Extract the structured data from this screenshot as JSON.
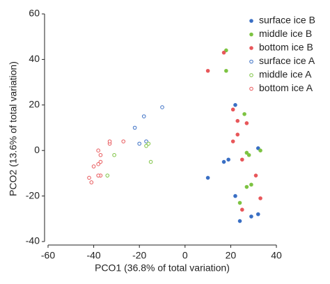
{
  "chart_data": {
    "type": "scatter",
    "x_label": "PCO1 (36.8% of total variation)",
    "y_label": "PCO2 (13.6% of total variation)",
    "xlim": [
      -60,
      40
    ],
    "xticks": [
      -60,
      -40,
      -20,
      0,
      20,
      40
    ],
    "ylim": [
      -40,
      60
    ],
    "yticks": [
      -40,
      -20,
      0,
      20,
      40,
      60
    ],
    "legend": "upper right",
    "series": [
      {
        "name": "surface ice B",
        "color": "#3a6fc4",
        "marker": "filled",
        "x": [
          22,
          32,
          19,
          17,
          10,
          22,
          32,
          29,
          24
        ],
        "y": [
          20,
          1,
          -4,
          -5,
          -12,
          -20,
          -28,
          -29,
          -31
        ]
      },
      {
        "name": "middle ice B",
        "color": "#7dc342",
        "marker": "filled",
        "x": [
          18,
          18,
          26,
          27,
          28,
          33,
          29,
          27,
          24
        ],
        "y": [
          44,
          35,
          16,
          -1,
          -2,
          0,
          -15,
          -16,
          -23
        ]
      },
      {
        "name": "bottom ice B",
        "color": "#e8575a",
        "marker": "filled",
        "x": [
          17,
          10,
          21,
          23,
          27,
          23,
          21,
          25,
          31,
          33,
          25
        ],
        "y": [
          43,
          35,
          18,
          13,
          12,
          7,
          4,
          -4,
          -11,
          -21,
          -26
        ]
      },
      {
        "name": "surface ice A",
        "color": "#3a6fc4",
        "marker": "open",
        "x": [
          -10,
          -18,
          -22,
          -20,
          -17
        ],
        "y": [
          19,
          15,
          10,
          3,
          4
        ]
      },
      {
        "name": "middle ice A",
        "color": "#7dc342",
        "marker": "open",
        "x": [
          -16,
          -15,
          -31,
          -34,
          -17
        ],
        "y": [
          3,
          -5,
          -2,
          -11,
          2
        ]
      },
      {
        "name": "bottom ice A",
        "color": "#e8575a",
        "marker": "open",
        "x": [
          -27,
          -33,
          -33,
          -38,
          -37,
          -37,
          -38,
          -40,
          -37,
          -38,
          -41,
          -42
        ],
        "y": [
          4,
          3,
          4,
          0,
          -2,
          -5,
          -6,
          -7,
          -11,
          -11,
          -14,
          -12
        ]
      }
    ]
  }
}
